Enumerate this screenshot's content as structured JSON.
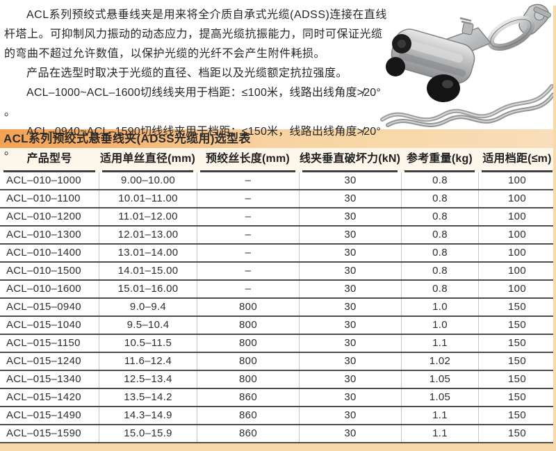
{
  "intro": {
    "paragraph": "ACL系列预绞式悬垂线夹是用来将全介质自承式光缆(ADSS)连接在直线杆塔上。可抑制风力振动的动态应力，提高光缆抗振能力，同时可保证光缆的弯曲不超过允许数值，以保护光缆的光纤不会产生附件耗损。",
    "selection_note": "产品在选型时取决于光缆的直径、档距以及光缆额定抗拉强度。",
    "spec_line_1": "ACL–1000~ACL–1600切线线夹用于档距：≤100米，线路出线角度≯20° 。",
    "spec_line_2": "ACL–0940~ACL–1590切线线夹用于档距：≤150米，线路出线角度≯20° 。"
  },
  "table": {
    "title": "ACL系列预绞式悬垂线夹(ADSS光缆用)选型表",
    "columns": [
      "产品型号",
      "适用单丝直径(mm)",
      "预绞丝长度(mm)",
      "线夹垂直破坏力(kN)",
      "参考重量(kg)",
      "适用档距(≤m)"
    ],
    "rows": [
      [
        "ACL–010–1000",
        "9.00–10.00",
        "–",
        "30",
        "0.8",
        "100"
      ],
      [
        "ACL–010–1100",
        "10.01–11.00",
        "–",
        "30",
        "0.8",
        "100"
      ],
      [
        "ACL–010–1200",
        "11.01–12.00",
        "–",
        "30",
        "0.8",
        "100"
      ],
      [
        "ACL–010–1300",
        "12.01–13.00",
        "–",
        "30",
        "0.8",
        "100"
      ],
      [
        "ACL–010–1400",
        "13.01–14.00",
        "–",
        "30",
        "0.8",
        "100"
      ],
      [
        "ACL–010–1500",
        "14.01–15.00",
        "–",
        "30",
        "0.8",
        "100"
      ],
      [
        "ACL–010–1600",
        "15.01–16.00",
        "–",
        "30",
        "0.8",
        "100"
      ],
      [
        "ACL–015–0940",
        "9.0–9.4",
        "800",
        "30",
        "1.0",
        "150"
      ],
      [
        "ACL–015–1040",
        "9.5–10.4",
        "800",
        "30",
        "1.0",
        "150"
      ],
      [
        "ACL–015–1150",
        "10.5–11.5",
        "800",
        "30",
        "1.1",
        "150"
      ],
      [
        "ACL–015–1240",
        "11.6–12.4",
        "800",
        "30",
        "1.02",
        "150"
      ],
      [
        "ACL–015–1340",
        "12.5–13.4",
        "800",
        "30",
        "1.05",
        "150"
      ],
      [
        "ACL–015–1420",
        "13.5–14.2",
        "860",
        "30",
        "1.05",
        "150"
      ],
      [
        "ACL–015–1490",
        "14.3–14.9",
        "860",
        "30",
        "1.1",
        "150"
      ],
      [
        "ACL–015–1590",
        "15.0–15.9",
        "860",
        "30",
        "1.1",
        "150"
      ]
    ]
  },
  "colors": {
    "accent_orange": "#f4a152",
    "bar_light_end": "#f8debb",
    "page_edge_tan": "#f7d9ab",
    "row_border_dark": "#4d4d4d",
    "column_divider_light": "#c6c6c6"
  }
}
